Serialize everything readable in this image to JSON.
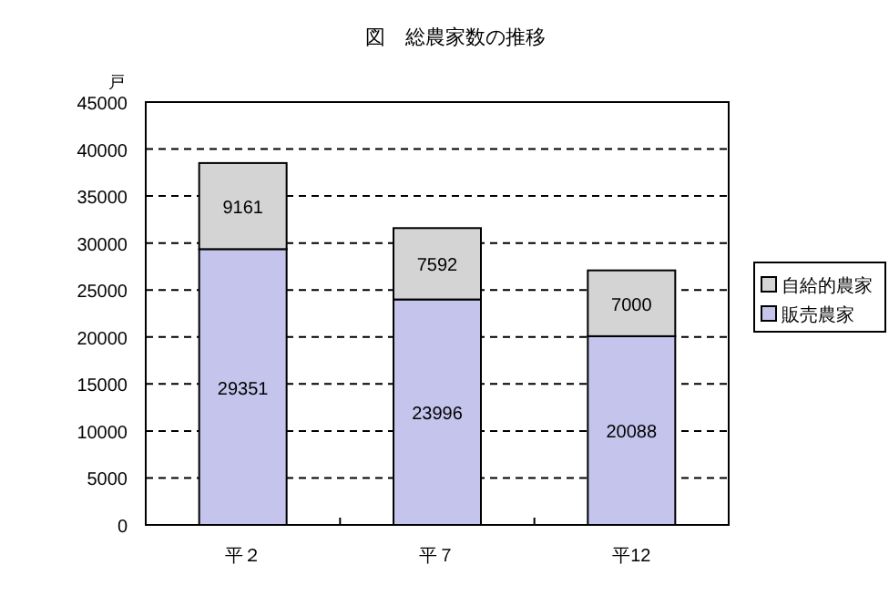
{
  "chart_data": {
    "type": "bar",
    "title": "図　総農家数の推移",
    "ylabel": "戸",
    "categories": [
      "平２",
      "平７",
      "平12"
    ],
    "stacked": true,
    "series": [
      {
        "name": "販売農家",
        "color": "#c4c4ec",
        "values": [
          29351,
          23996,
          20088
        ]
      },
      {
        "name": "自給的農家",
        "color": "#d4d4d4",
        "values": [
          9161,
          7592,
          7000
        ]
      }
    ],
    "ylim": [
      0,
      45000
    ],
    "yticks": [
      0,
      5000,
      10000,
      15000,
      20000,
      25000,
      30000,
      35000,
      40000,
      45000
    ],
    "grid": "y",
    "legend": "right",
    "data_labels": true
  }
}
